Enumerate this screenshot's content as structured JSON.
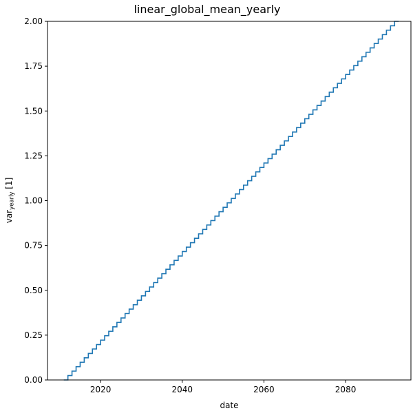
{
  "chart_data": {
    "type": "line",
    "drawstyle": "steps-post",
    "title": "linear_global_mean_yearly",
    "xlabel": "date",
    "ylabel": {
      "base": "var",
      "subscript": "yearly",
      "suffix": " [1]"
    },
    "xlim": [
      "2007-01-01",
      "2096-01-01"
    ],
    "ylim": [
      0,
      2.0
    ],
    "xticks": [
      {
        "value": "2020-01-01",
        "label": "2020"
      },
      {
        "value": "2040-01-01",
        "label": "2040"
      },
      {
        "value": "2060-01-01",
        "label": "2060"
      },
      {
        "value": "2080-01-01",
        "label": "2080"
      }
    ],
    "yticks": [
      {
        "value": 0.0,
        "label": "0.00"
      },
      {
        "value": 0.25,
        "label": "0.25"
      },
      {
        "value": 0.5,
        "label": "0.50"
      },
      {
        "value": 0.75,
        "label": "0.75"
      },
      {
        "value": 1.0,
        "label": "1.00"
      },
      {
        "value": 1.25,
        "label": "1.25"
      },
      {
        "value": 1.5,
        "label": "1.50"
      },
      {
        "value": 1.75,
        "label": "1.75"
      },
      {
        "value": 2.0,
        "label": "2.00"
      }
    ],
    "grid": false,
    "series": [
      {
        "color": "#1f77b4",
        "x": [
          "2011-01-01",
          "2012-01-01",
          "2013-01-01",
          "2014-01-01",
          "2015-01-01",
          "2016-01-01",
          "2017-01-01",
          "2018-01-01",
          "2019-01-01",
          "2020-01-01",
          "2021-01-01",
          "2022-01-01",
          "2023-01-01",
          "2024-01-01",
          "2025-01-01",
          "2026-01-01",
          "2027-01-01",
          "2028-01-01",
          "2029-01-01",
          "2030-01-01",
          "2031-01-01",
          "2032-01-01",
          "2033-01-01",
          "2034-01-01",
          "2035-01-01",
          "2036-01-01",
          "2037-01-01",
          "2038-01-01",
          "2039-01-01",
          "2040-01-01",
          "2041-01-01",
          "2042-01-01",
          "2043-01-01",
          "2044-01-01",
          "2045-01-01",
          "2046-01-01",
          "2047-01-01",
          "2048-01-01",
          "2049-01-01",
          "2050-01-01",
          "2051-01-01",
          "2052-01-01",
          "2053-01-01",
          "2054-01-01",
          "2055-01-01",
          "2056-01-01",
          "2057-01-01",
          "2058-01-01",
          "2059-01-01",
          "2060-01-01",
          "2061-01-01",
          "2062-01-01",
          "2063-01-01",
          "2064-01-01",
          "2065-01-01",
          "2066-01-01",
          "2067-01-01",
          "2068-01-01",
          "2069-01-01",
          "2070-01-01",
          "2071-01-01",
          "2072-01-01",
          "2073-01-01",
          "2074-01-01",
          "2075-01-01",
          "2076-01-01",
          "2077-01-01",
          "2078-01-01",
          "2079-01-01",
          "2080-01-01",
          "2081-01-01",
          "2082-01-01",
          "2083-01-01",
          "2084-01-01",
          "2085-01-01",
          "2086-01-01",
          "2087-01-01",
          "2088-01-01",
          "2089-01-01",
          "2090-01-01",
          "2091-01-01",
          "2092-01-01",
          "2093-01-01"
        ],
        "y": [
          0.0,
          0.0247,
          0.0494,
          0.0741,
          0.0988,
          0.1235,
          0.1481,
          0.1728,
          0.1975,
          0.2222,
          0.2469,
          0.2716,
          0.2963,
          0.321,
          0.3457,
          0.3704,
          0.3951,
          0.4198,
          0.4444,
          0.4691,
          0.4938,
          0.5185,
          0.5432,
          0.5679,
          0.5926,
          0.6173,
          0.642,
          0.6667,
          0.6914,
          0.716,
          0.7407,
          0.7654,
          0.7901,
          0.8148,
          0.8395,
          0.8642,
          0.8889,
          0.9136,
          0.9383,
          0.963,
          0.9877,
          1.0123,
          1.037,
          1.0617,
          1.0864,
          1.1111,
          1.1358,
          1.1605,
          1.1852,
          1.2099,
          1.2346,
          1.2593,
          1.284,
          1.3086,
          1.3333,
          1.358,
          1.3827,
          1.4074,
          1.4321,
          1.4568,
          1.4815,
          1.5062,
          1.5309,
          1.5556,
          1.5802,
          1.6049,
          1.6296,
          1.6543,
          1.679,
          1.7037,
          1.7284,
          1.7531,
          1.7778,
          1.8025,
          1.8272,
          1.8519,
          1.8765,
          1.9012,
          1.9259,
          1.9506,
          1.9753,
          2.0,
          2.0
        ]
      }
    ]
  }
}
